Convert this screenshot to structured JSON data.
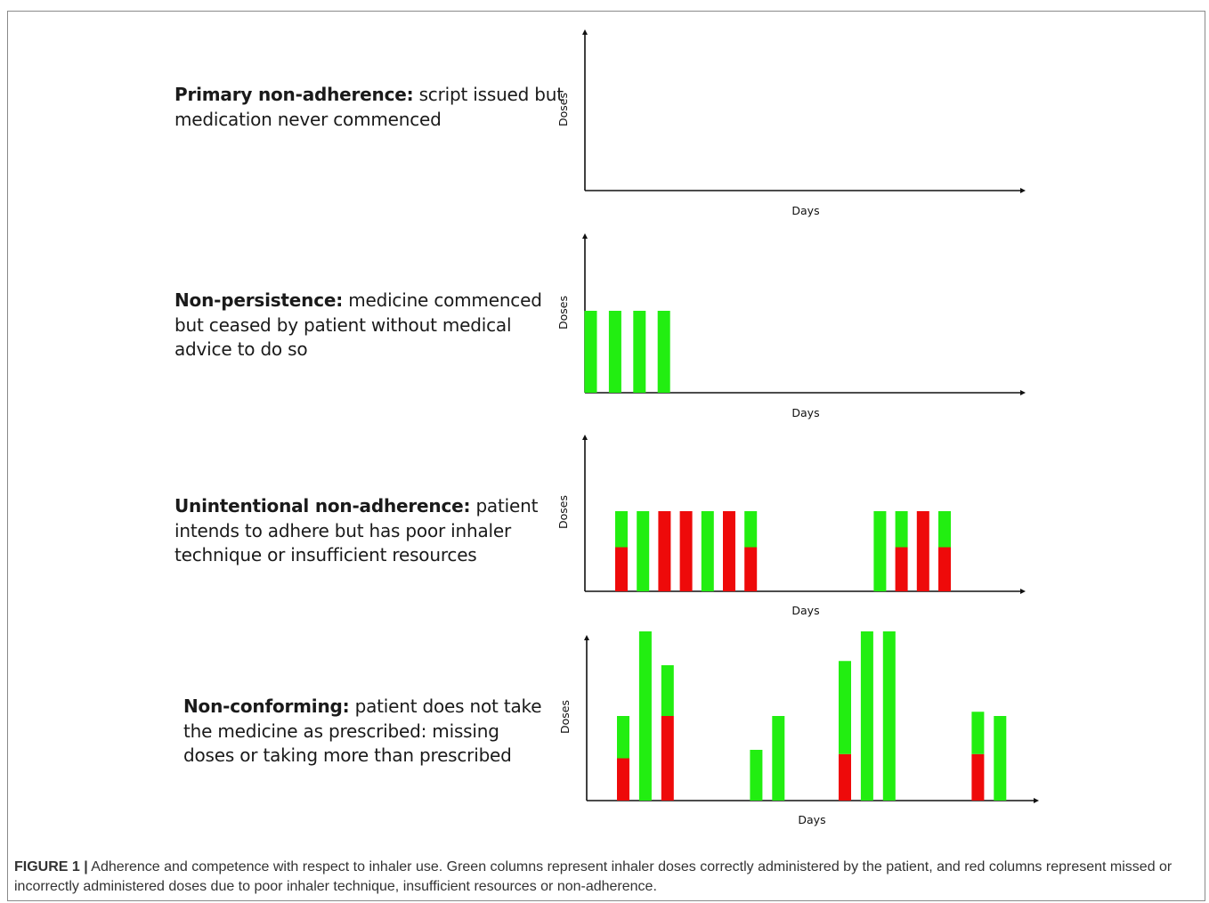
{
  "colors": {
    "correct": "#22ee11",
    "incorrect": "#ee0a0a",
    "axis": "#111111"
  },
  "panels": [
    {
      "term": "Primary non-adherence:",
      "lines": [
        "script issued but",
        "medication never commenced"
      ]
    },
    {
      "term": "Non-persistence:",
      "lines": [
        "medicine commenced",
        "but ceased by patient without medical",
        "advice to do so"
      ]
    },
    {
      "term": "Unintentional non-adherence:",
      "lines": [
        "patient",
        "intends to adhere but has poor inhaler",
        "technique or insufficient resources"
      ]
    },
    {
      "term": "Non-conforming:",
      "lines": [
        "patient does not take",
        "the medicine as prescribed: missing",
        "doses or taking more than prescribed"
      ]
    }
  ],
  "chart_data": [
    {
      "type": "bar",
      "stacked": true,
      "xlabel": "Days",
      "ylabel": "Doses",
      "x": [],
      "series": []
    },
    {
      "type": "bar",
      "stacked": true,
      "xlabel": "Days",
      "ylabel": "Doses",
      "x": [
        1,
        2,
        3,
        4
      ],
      "series": [
        {
          "values": [
            1,
            1,
            1,
            1
          ]
        }
      ]
    },
    {
      "type": "bar",
      "stacked": true,
      "xlabel": "Days",
      "ylabel": "Doses",
      "x": [
        1,
        2,
        3,
        4,
        5,
        6,
        7,
        13,
        14,
        15,
        16
      ],
      "series": [
        {
          "values": [
            0.45,
            1,
            0,
            0,
            1,
            0,
            0.45,
            1,
            0.45,
            0,
            0.45
          ]
        },
        {
          "values": [
            0.55,
            0,
            1,
            1,
            0,
            1,
            0.55,
            0,
            0.55,
            1,
            0.55
          ]
        }
      ]
    },
    {
      "type": "bar",
      "stacked": true,
      "xlabel": "Days",
      "ylabel": "Doses",
      "x": [
        1,
        2,
        3,
        7,
        8,
        11,
        12,
        13,
        17,
        18
      ],
      "series": [
        {
          "values": [
            0.5,
            2,
            0.6,
            0.6,
            1,
            1.1,
            2,
            2,
            0.5,
            1
          ]
        },
        {
          "values": [
            0.5,
            0,
            1,
            0,
            0,
            0.55,
            0,
            0,
            0.55,
            0
          ]
        }
      ]
    }
  ],
  "caption": {
    "label": "FIGURE 1 |",
    "text": "Adherence and competence with respect to inhaler use. Green columns represent inhaler doses correctly administered by the patient, and red columns represent missed or incorrectly administered doses due to poor inhaler technique, insufficient resources or non-adherence."
  }
}
